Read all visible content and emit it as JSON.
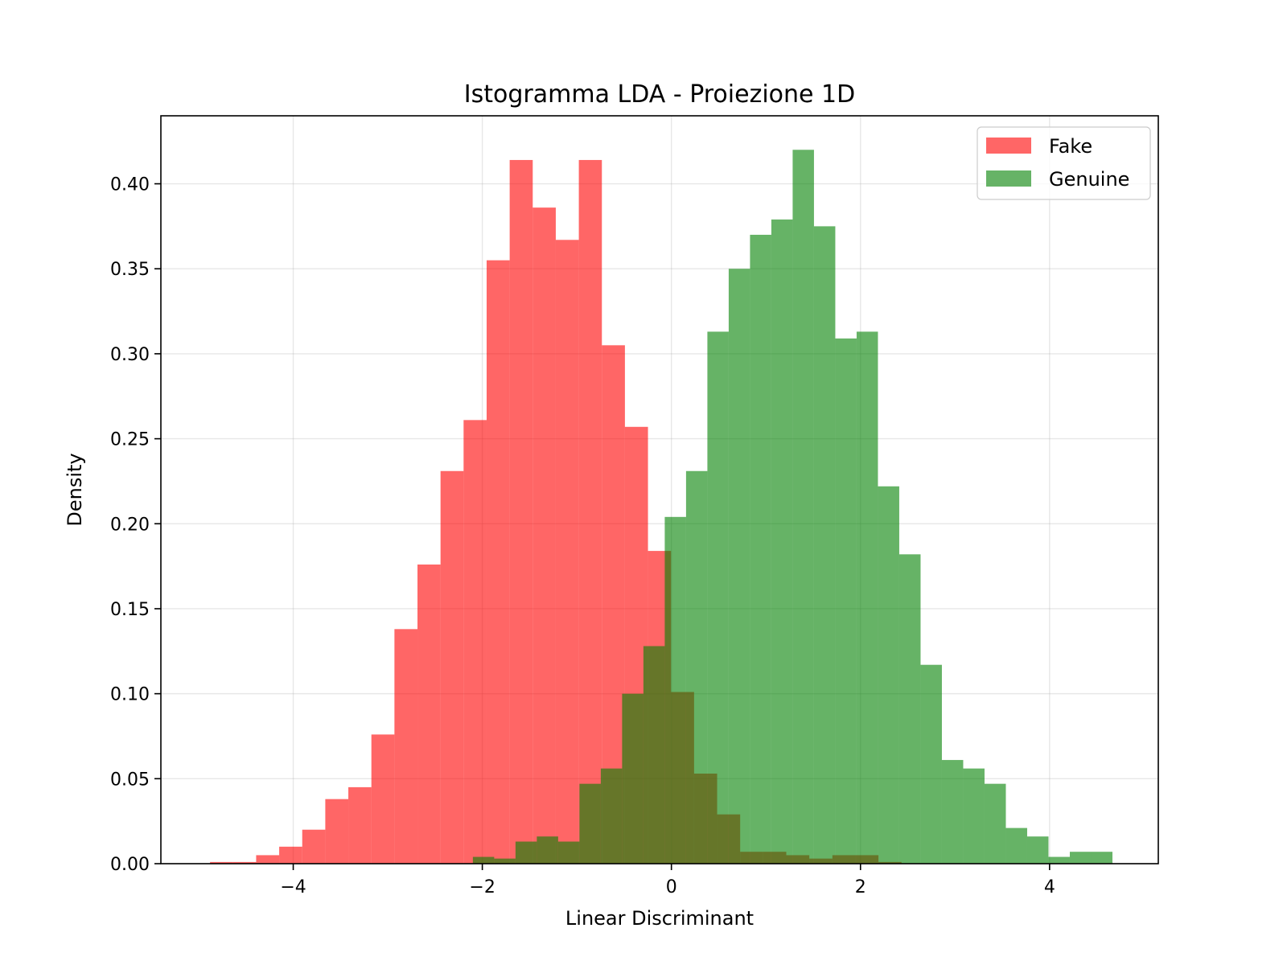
{
  "chart_data": {
    "type": "bar",
    "subtype": "histogram",
    "title": "Istogramma LDA - Proiezione 1D",
    "xlabel": "Linear Discriminant",
    "ylabel": "Density",
    "xlim": [
      -5.4,
      5.15
    ],
    "ylim": [
      0,
      0.44
    ],
    "xticks": [
      -4,
      -2,
      0,
      2,
      4
    ],
    "xtick_labels": [
      "−4",
      "−2",
      "0",
      "2",
      "4"
    ],
    "yticks": [
      0.0,
      0.05,
      0.1,
      0.15,
      0.2,
      0.25,
      0.3,
      0.35,
      0.4
    ],
    "ytick_labels": [
      "0.00",
      "0.05",
      "0.10",
      "0.15",
      "0.20",
      "0.25",
      "0.30",
      "0.35",
      "0.40"
    ],
    "grid": true,
    "legend_position": "top-right",
    "bar_alpha": 0.6,
    "series": [
      {
        "name": "Fake",
        "color": "#ff0000",
        "bin_start": -4.88,
        "bin_width": 0.2438,
        "values": [
          0.001,
          0.001,
          0.005,
          0.01,
          0.02,
          0.038,
          0.045,
          0.076,
          0.138,
          0.176,
          0.231,
          0.261,
          0.355,
          0.414,
          0.386,
          0.367,
          0.414,
          0.305,
          0.257,
          0.184,
          0.101,
          0.053,
          0.029,
          0.007,
          0.007,
          0.005,
          0.003,
          0.005,
          0.005,
          0.001
        ]
      },
      {
        "name": "Genuine",
        "color": "#008000",
        "bin_start": -2.1,
        "bin_width": 0.2255,
        "values": [
          0.004,
          0.003,
          0.013,
          0.016,
          0.013,
          0.047,
          0.056,
          0.1,
          0.128,
          0.204,
          0.231,
          0.313,
          0.35,
          0.37,
          0.379,
          0.42,
          0.375,
          0.309,
          0.313,
          0.222,
          0.182,
          0.117,
          0.061,
          0.056,
          0.047,
          0.021,
          0.016,
          0.004,
          0.007,
          0.007
        ]
      }
    ]
  }
}
